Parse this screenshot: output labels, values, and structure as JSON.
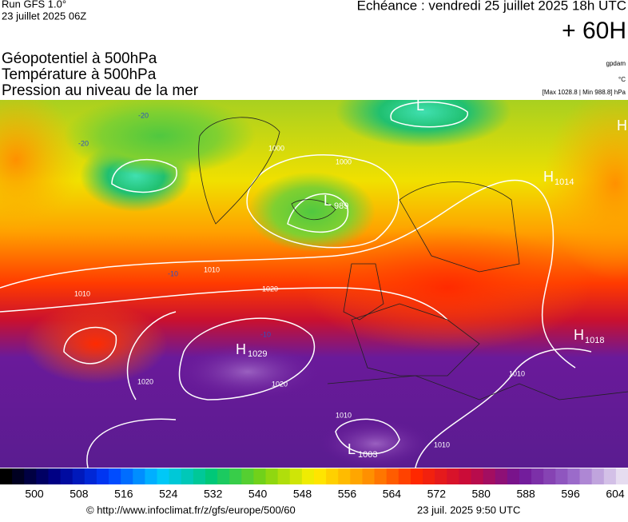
{
  "header": {
    "run": "Run GFS 1.0°",
    "run_date": "23 juillet 2025 06Z",
    "echeance": "Echéance : vendredi 25 juillet 2025 18h UTC",
    "lead": "+ 60H"
  },
  "layers": [
    "Géopotentiel à 500hPa",
    "Température à 500hPa",
    "Pression au niveau de la mer"
  ],
  "units": [
    "gpdam",
    "°C",
    "[Max 1028.8 | Min 988.8] hPa"
  ],
  "map": {
    "centers": [
      {
        "letter": "H",
        "value": "1029"
      },
      {
        "letter": "L",
        "value": "989"
      },
      {
        "letter": "H",
        "value": "1014"
      },
      {
        "letter": "H",
        "value": "1018"
      },
      {
        "letter": "L",
        "value": "1003"
      },
      {
        "letter": "L"
      },
      {
        "letter": "H"
      }
    ],
    "isobar_labels": [
      "1010",
      "1020",
      "1010",
      "1000",
      "1000",
      "1020",
      "1020",
      "1010",
      "1010",
      "1010"
    ],
    "temperature_labels": [
      "-20",
      "-20",
      "-10",
      "-10"
    ]
  },
  "scale": {
    "labels": [
      "500",
      "508",
      "516",
      "524",
      "532",
      "540",
      "548",
      "556",
      "564",
      "572",
      "580",
      "588",
      "596",
      "604"
    ]
  },
  "footer": {
    "url": "© http://www.infoclimat.fr/z/gfs/europe/500/60",
    "date": "23 juil. 2025  9:50 UTC"
  }
}
